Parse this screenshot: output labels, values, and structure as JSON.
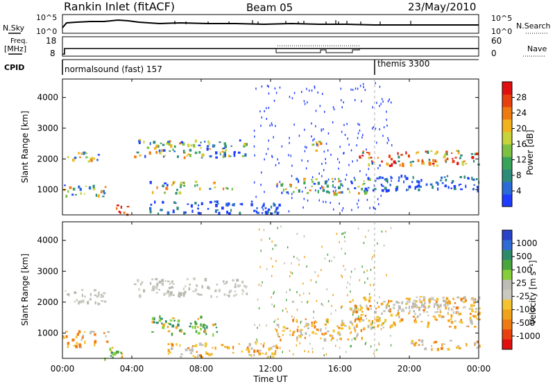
{
  "header": {
    "station": "Rankin Inlet (fitACF)",
    "beam": "Beam 05",
    "date": "23/May/2010"
  },
  "top_panels": {
    "nsky_label": "N.Sky",
    "nsky_ticks": [
      "10^5",
      "10^0"
    ],
    "nsearch_label": "N.Search",
    "nsearch_ticks": [
      "10^5",
      "10^0"
    ],
    "freq_label": "Freq.",
    "freq_unit": "[MHz]",
    "freq_ticks": [
      "18",
      "8"
    ],
    "nave_label": "Nave",
    "nave_ticks": [
      "60",
      "0"
    ],
    "cpid_label": "CPID",
    "cpid_segments": [
      {
        "label": "normalsound (fast) 157",
        "start_hour": 0
      },
      {
        "label": "themis 3300",
        "start_hour": 18
      }
    ]
  },
  "chart_data": [
    {
      "type": "heatmap",
      "name": "power",
      "ylabel": "Slant Range [km]",
      "yticks": [
        "1000",
        "2000",
        "3000",
        "4000"
      ],
      "ylim": [
        180,
        4600
      ],
      "xlim": [
        0,
        24
      ],
      "colorbar": {
        "label": "Power [dB]",
        "ticks": [
          "4",
          "8",
          "12",
          "16",
          "20",
          "24",
          "28"
        ],
        "colors": [
          "#1e3cff",
          "#2a6bd8",
          "#2e8b7a",
          "#3aa35a",
          "#7dc142",
          "#c8d23a",
          "#f2b21c",
          "#f07a12",
          "#e8400e",
          "#e01010"
        ]
      }
    },
    {
      "type": "heatmap",
      "name": "velocity",
      "ylabel": "Slant Range [km]",
      "yticks": [
        "1000",
        "2000",
        "3000",
        "4000"
      ],
      "ylim": [
        180,
        4600
      ],
      "xlim": [
        0,
        24
      ],
      "colorbar": {
        "label": "Velocity [m s⁻¹]",
        "ticks": [
          "1000",
          "500",
          "100",
          "25",
          "-25",
          "-100",
          "-500",
          "-1000"
        ],
        "colors": [
          "#2a44c8",
          "#2f6bd4",
          "#2e8b6a",
          "#4aa53f",
          "#86cf3b",
          "#bdbdb5",
          "#c9c9c0",
          "#f4c430",
          "#f2a21a",
          "#f07a12",
          "#e8400e",
          "#e01010"
        ]
      }
    }
  ],
  "time_axis": {
    "label": "Time UT",
    "ticks": [
      "00:00",
      "04:00",
      "08:00",
      "12:00",
      "16:00",
      "20:00",
      "00:00"
    ]
  }
}
